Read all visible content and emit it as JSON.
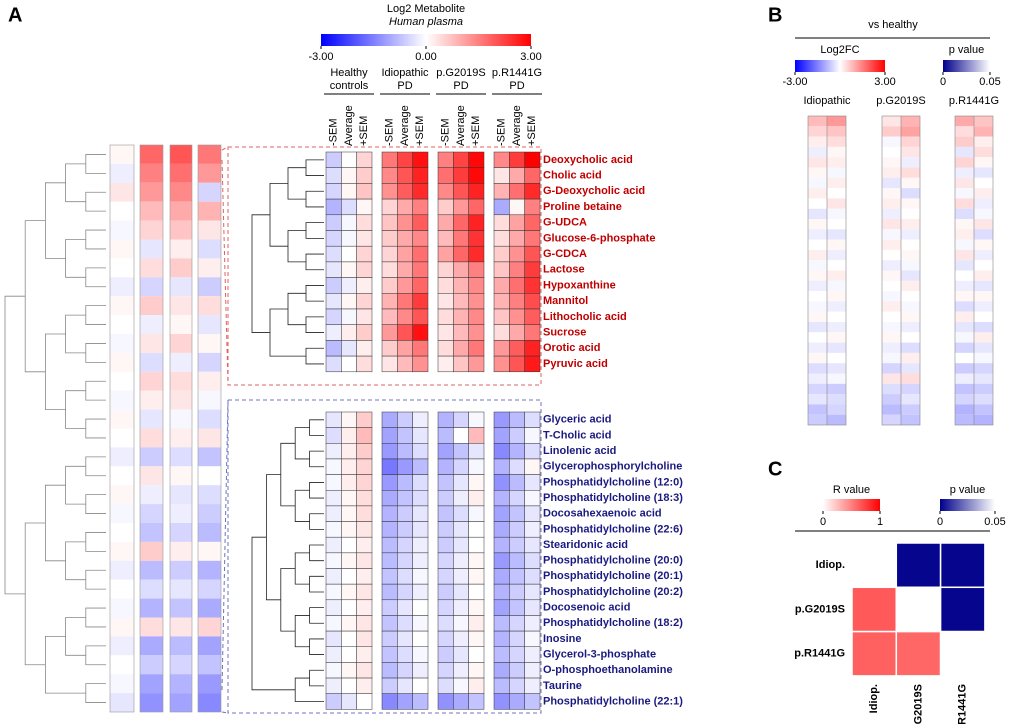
{
  "chart_data": [
    {
      "type": "heatmap",
      "panel": "A",
      "colorbar": {
        "title": "Log2 Metabolite",
        "subtitle": "Human plasma",
        "lim": [
          -3,
          3
        ],
        "ticks": [
          {
            "value": -3,
            "label": "-3.00"
          },
          {
            "value": 0,
            "label": "0.00"
          },
          {
            "value": 3,
            "label": "3.00"
          }
        ],
        "colors": [
          "#0000ff",
          "#ffffff",
          "#ff0000"
        ]
      },
      "groups": [
        [
          "Healthy",
          "controls"
        ],
        [
          "Idiopathic",
          "PD"
        ],
        [
          "p.G2019S",
          "PD"
        ],
        [
          "p.R1441G",
          "PD"
        ]
      ],
      "subcolumns": [
        "-SEM",
        "Average",
        "+SEM"
      ],
      "overview": [
        [
          0.1,
          1.8,
          2.0,
          1.6
        ],
        [
          -0.2,
          1.5,
          1.7,
          1.2
        ],
        [
          0.3,
          1.2,
          1.4,
          -0.5
        ],
        [
          0.0,
          0.8,
          1.0,
          0.9
        ],
        [
          -0.1,
          0.5,
          0.7,
          0.3
        ],
        [
          0.1,
          -0.3,
          0.2,
          -0.4
        ],
        [
          0.0,
          0.4,
          0.6,
          0.2
        ],
        [
          -0.2,
          -0.5,
          -0.3,
          -0.6
        ],
        [
          0.1,
          0.6,
          0.3,
          0.4
        ],
        [
          0.0,
          -0.2,
          0.1,
          -0.3
        ],
        [
          -0.1,
          0.3,
          0.5,
          0.1
        ],
        [
          0.1,
          -0.4,
          -0.2,
          -0.5
        ],
        [
          0.0,
          0.5,
          0.4,
          0.2
        ],
        [
          -0.1,
          0.2,
          0.3,
          -0.1
        ],
        [
          0.1,
          -0.3,
          -0.1,
          -0.4
        ],
        [
          0.0,
          0.4,
          0.2,
          0.3
        ],
        [
          -0.2,
          -0.6,
          -0.4,
          -0.7
        ],
        [
          0.0,
          0.3,
          0.1,
          0.0
        ],
        [
          0.1,
          -0.2,
          -0.3,
          -0.4
        ],
        [
          -0.1,
          -0.5,
          -0.2,
          -0.6
        ],
        [
          0.0,
          -0.7,
          -0.5,
          -0.8
        ],
        [
          0.1,
          0.6,
          0.2,
          0.1
        ],
        [
          -0.2,
          -0.8,
          -0.6,
          -0.9
        ],
        [
          0.0,
          -0.4,
          -0.3,
          -0.5
        ],
        [
          -0.1,
          -0.9,
          -0.7,
          -1.0
        ],
        [
          0.1,
          0.4,
          0.3,
          0.5
        ],
        [
          -0.2,
          -1.0,
          -0.8,
          -1.1
        ],
        [
          0.0,
          -0.6,
          -0.5,
          -0.7
        ],
        [
          -0.1,
          -1.1,
          -0.9,
          -1.2
        ],
        [
          -0.3,
          -1.3,
          -1.1,
          -1.4
        ]
      ],
      "clusters": [
        {
          "color": "#c00000",
          "rows": [
            "Deoxycholic acid",
            "Cholic acid",
            "G-Deoxycholic acid",
            "Proline betaine",
            "G-UDCA",
            "Glucose-6-phosphate",
            "G-CDCA",
            "Lactose",
            "Hypoxanthine",
            "Mannitol",
            "Lithocholic acid",
            "Sucrose",
            "Orotic acid",
            "Pyruvic acid"
          ],
          "values": [
            [
              -0.6,
              0.0,
              0.5,
              1.6,
              2.2,
              2.8,
              1.5,
              2.2,
              2.9,
              1.4,
              2.3,
              3.0
            ],
            [
              -0.4,
              0.1,
              0.6,
              1.4,
              2.0,
              2.6,
              1.7,
              2.3,
              2.9,
              0.3,
              1.0,
              1.8
            ],
            [
              -0.5,
              0.1,
              0.7,
              1.3,
              1.9,
              2.5,
              1.4,
              2.0,
              2.6,
              0.9,
              1.7,
              2.5
            ],
            [
              -0.9,
              -0.4,
              0.1,
              0.5,
              1.0,
              1.5,
              0.6,
              1.2,
              1.8,
              -1.0,
              0.1,
              1.5
            ],
            [
              -0.6,
              -0.1,
              0.4,
              0.7,
              1.3,
              1.9,
              1.0,
              1.8,
              2.6,
              0.4,
              1.1,
              1.8
            ],
            [
              -0.5,
              -0.1,
              0.3,
              0.6,
              1.0,
              1.4,
              0.8,
              1.6,
              2.4,
              0.4,
              1.0,
              1.6
            ],
            [
              -0.4,
              0.0,
              0.5,
              0.5,
              1.1,
              1.7,
              1.1,
              1.8,
              2.5,
              0.6,
              1.3,
              2.0
            ],
            [
              -0.3,
              0.1,
              0.5,
              0.4,
              1.0,
              1.6,
              0.5,
              1.0,
              1.5,
              0.7,
              1.5,
              2.3
            ],
            [
              -0.6,
              -0.2,
              0.2,
              0.6,
              1.2,
              1.8,
              0.4,
              0.9,
              1.4,
              1.0,
              1.7,
              2.4
            ],
            [
              -0.3,
              0.1,
              0.5,
              0.9,
              1.6,
              2.3,
              0.3,
              0.8,
              1.3,
              0.9,
              1.5,
              2.1
            ],
            [
              -0.5,
              -0.1,
              0.3,
              0.8,
              1.4,
              2.0,
              0.4,
              0.9,
              1.4,
              0.7,
              1.3,
              1.9
            ],
            [
              -0.2,
              0.2,
              0.6,
              1.2,
              2.0,
              2.8,
              0.3,
              0.8,
              1.3,
              0.4,
              1.0,
              1.6
            ],
            [
              -0.8,
              -0.3,
              0.2,
              0.6,
              1.1,
              1.6,
              0.4,
              1.0,
              1.6,
              1.2,
              1.9,
              2.6
            ],
            [
              -0.4,
              0.0,
              0.4,
              0.3,
              0.8,
              1.3,
              0.2,
              0.7,
              1.2,
              1.3,
              2.0,
              2.7
            ]
          ]
        },
        {
          "color": "#1a1a80",
          "rows": [
            "Glyceric acid",
            "T-Cholic acid",
            "Linolenic acid",
            "Glycerophosphorylcholine",
            "Phosphatidylcholine (12:0)",
            "Phosphatidylcholine (18:3)",
            "Docosahexaenoic acid",
            "Phosphatidylcholine (22:6)",
            "Stearidonic acid",
            "Phosphatidylcholine (20:0)",
            "Phosphatidylcholine (20:1)",
            "Phosphatidylcholine (20:2)",
            "Docosenoic acid",
            "Phosphatidylcholine (18:2)",
            "Inosine",
            "Glycerol-3-phosphate",
            "O-phosphoethanolamine",
            "Taurine",
            "Phosphatidylcholine (22:1)"
          ],
          "values": [
            [
              -0.3,
              0.1,
              0.6,
              -1.0,
              -0.6,
              -0.2,
              -0.9,
              -0.5,
              -0.1,
              -1.2,
              -0.8,
              -0.4
            ],
            [
              -0.4,
              0.2,
              0.8,
              -1.1,
              -0.7,
              -0.3,
              -0.8,
              0.0,
              0.8,
              -1.1,
              -0.6,
              -0.1
            ],
            [
              -0.2,
              0.2,
              0.6,
              -1.2,
              -0.8,
              -0.4,
              -1.1,
              -0.7,
              -0.3,
              -1.4,
              -0.9,
              -0.4
            ],
            [
              -0.1,
              0.2,
              0.5,
              -1.6,
              -1.2,
              -0.8,
              -0.9,
              -0.5,
              -0.1,
              -0.9,
              -0.4,
              0.1
            ],
            [
              -0.1,
              0.2,
              0.5,
              -1.2,
              -0.8,
              -0.4,
              -0.7,
              -0.3,
              0.1,
              -1.3,
              -0.8,
              -0.3
            ],
            [
              -0.2,
              0.1,
              0.4,
              -1.0,
              -0.7,
              -0.4,
              -0.6,
              -0.2,
              0.2,
              -0.9,
              -0.5,
              -0.1
            ],
            [
              -0.2,
              0.1,
              0.4,
              -0.9,
              -0.6,
              -0.3,
              -0.7,
              -0.4,
              -0.1,
              -1.1,
              -0.7,
              -0.3
            ],
            [
              -0.1,
              0.1,
              0.3,
              -0.9,
              -0.6,
              -0.3,
              -0.6,
              -0.3,
              0.0,
              -1.0,
              -0.6,
              -0.2
            ],
            [
              -0.2,
              0.0,
              0.2,
              -0.8,
              -0.5,
              -0.2,
              -0.6,
              -0.3,
              0.0,
              -0.9,
              -0.6,
              -0.3
            ],
            [
              -0.1,
              0.1,
              0.3,
              -0.8,
              -0.5,
              -0.2,
              -0.5,
              -0.2,
              0.1,
              -1.2,
              -0.8,
              -0.4
            ],
            [
              -0.2,
              0.0,
              0.2,
              -0.7,
              -0.4,
              -0.1,
              -0.5,
              -0.2,
              0.1,
              -1.0,
              -0.7,
              -0.4
            ],
            [
              -0.1,
              0.1,
              0.3,
              -0.8,
              -0.5,
              -0.2,
              -0.6,
              -0.3,
              0.0,
              -0.9,
              -0.6,
              -0.3
            ],
            [
              -0.2,
              0.0,
              0.2,
              -0.6,
              -0.3,
              0.0,
              -0.5,
              -0.2,
              0.1,
              -1.1,
              -0.7,
              -0.3
            ],
            [
              -0.1,
              0.1,
              0.3,
              -0.7,
              -0.4,
              -0.1,
              -0.4,
              -0.1,
              0.2,
              -0.8,
              -0.5,
              -0.2
            ],
            [
              -0.3,
              0.0,
              0.3,
              -0.6,
              -0.3,
              0.0,
              -0.5,
              -0.2,
              0.1,
              -0.9,
              -0.5,
              -0.1
            ],
            [
              -0.2,
              0.0,
              0.2,
              -0.7,
              -0.4,
              -0.1,
              -0.6,
              -0.3,
              0.0,
              -0.8,
              -0.5,
              -0.2
            ],
            [
              -0.1,
              0.1,
              0.3,
              -0.8,
              -0.5,
              -0.2,
              -0.5,
              -0.2,
              0.1,
              -1.0,
              -0.6,
              -0.2
            ],
            [
              -0.2,
              0.0,
              0.2,
              -0.6,
              -0.3,
              0.0,
              -0.4,
              -0.1,
              0.2,
              -0.8,
              -0.5,
              -0.2
            ],
            [
              -0.6,
              -0.3,
              0.0,
              -1.4,
              -1.1,
              -0.8,
              -1.3,
              -1.0,
              -0.7,
              -1.3,
              -1.0,
              -0.7
            ]
          ]
        }
      ]
    },
    {
      "type": "heatmap",
      "panel": "B",
      "title": "vs healthy",
      "colorbars": [
        {
          "title": "Log2FC",
          "lim": [
            -3,
            3
          ],
          "ticks": [
            {
              "value": -3,
              "label": "-3.00"
            },
            {
              "value": 3,
              "label": "3.00"
            }
          ],
          "colors": [
            "#0000ff",
            "#ffffff",
            "#ff0000"
          ]
        },
        {
          "title": "p value",
          "lim": [
            0,
            0.05
          ],
          "ticks": [
            0,
            0.05
          ],
          "colors": [
            "#00008b",
            "#ffffff"
          ]
        }
      ],
      "categories": [
        "Idiopathic",
        "p.G2019S",
        "p.R1441G"
      ],
      "values": [
        [
          0.8,
          1.2,
          0.3,
          0.9,
          1.0,
          0.7
        ],
        [
          0.5,
          0.7,
          0.6,
          1.1,
          0.4,
          0.9
        ],
        [
          0.2,
          0.4,
          -0.1,
          0.5,
          0.6,
          0.2
        ],
        [
          -0.2,
          0.1,
          0.0,
          0.3,
          -0.3,
          0.4
        ],
        [
          0.3,
          0.2,
          0.1,
          -0.2,
          0.5,
          0.1
        ],
        [
          0.1,
          -0.1,
          0.2,
          0.4,
          -0.2,
          -0.3
        ],
        [
          -0.1,
          0.2,
          -0.3,
          0.1,
          0.3,
          0.0
        ],
        [
          0.2,
          0.0,
          0.1,
          -0.4,
          -0.1,
          0.2
        ],
        [
          0.0,
          0.3,
          0.2,
          0.1,
          0.4,
          -0.2
        ],
        [
          -0.3,
          -0.1,
          -0.2,
          0.0,
          -0.4,
          -0.1
        ],
        [
          0.1,
          0.0,
          0.3,
          0.2,
          0.1,
          0.3
        ],
        [
          -0.2,
          -0.3,
          -0.1,
          -0.2,
          0.2,
          -0.4
        ],
        [
          0.0,
          0.1,
          0.2,
          0.0,
          -0.1,
          0.1
        ],
        [
          0.2,
          -0.2,
          0.0,
          0.1,
          0.3,
          -0.2
        ],
        [
          -0.1,
          0.0,
          -0.2,
          -0.1,
          -0.3,
          0.0
        ],
        [
          0.1,
          0.2,
          0.1,
          -0.3,
          0.0,
          0.2
        ],
        [
          -0.2,
          -0.1,
          0.0,
          0.2,
          -0.2,
          -0.3
        ],
        [
          0.0,
          0.1,
          -0.1,
          0.0,
          0.1,
          0.1
        ],
        [
          -0.1,
          -0.2,
          0.2,
          -0.1,
          -0.4,
          -0.2
        ],
        [
          0.1,
          0.0,
          0.0,
          0.1,
          0.2,
          0.0
        ],
        [
          -0.3,
          -0.2,
          -0.1,
          -0.2,
          -0.3,
          -0.4
        ],
        [
          0.0,
          0.1,
          0.1,
          0.0,
          -0.1,
          0.2
        ],
        [
          -0.2,
          -0.3,
          -0.2,
          -0.4,
          -0.5,
          -0.3
        ],
        [
          0.1,
          0.0,
          -0.1,
          0.2,
          0.0,
          -0.1
        ],
        [
          -0.4,
          -0.3,
          -0.5,
          -0.3,
          -0.6,
          -0.5
        ],
        [
          -0.2,
          -0.1,
          0.3,
          0.4,
          -0.2,
          -0.3
        ],
        [
          -0.5,
          -0.6,
          -0.4,
          -0.5,
          -0.7,
          -0.6
        ],
        [
          -0.3,
          -0.4,
          -0.6,
          -0.3,
          -0.5,
          -0.4
        ],
        [
          -0.7,
          -0.5,
          -0.8,
          -0.6,
          -0.9,
          -0.7
        ],
        [
          -0.6,
          -0.8,
          -0.5,
          -0.7,
          -0.8,
          -0.9
        ]
      ]
    },
    {
      "type": "corrmatrix",
      "panel": "C",
      "colorbars": [
        {
          "title": "R value",
          "lim": [
            0,
            1
          ],
          "ticks": [
            0,
            1
          ],
          "colors": [
            "#ffffff",
            "#ff0000"
          ]
        },
        {
          "title": "p value",
          "lim": [
            0,
            0.05
          ],
          "ticks": [
            0,
            0.05
          ],
          "colors": [
            "#00008b",
            "#ffffff"
          ]
        }
      ],
      "categories": [
        "Idiop.",
        "p.G2019S",
        "p.R1441G"
      ],
      "r_values": [
        [
          null,
          null,
          null
        ],
        [
          0.65,
          null,
          null
        ],
        [
          0.62,
          0.6,
          null
        ]
      ],
      "p_values": [
        [
          null,
          0.001,
          0.001
        ],
        [
          null,
          null,
          0.001
        ],
        [
          null,
          null,
          null
        ]
      ]
    }
  ]
}
